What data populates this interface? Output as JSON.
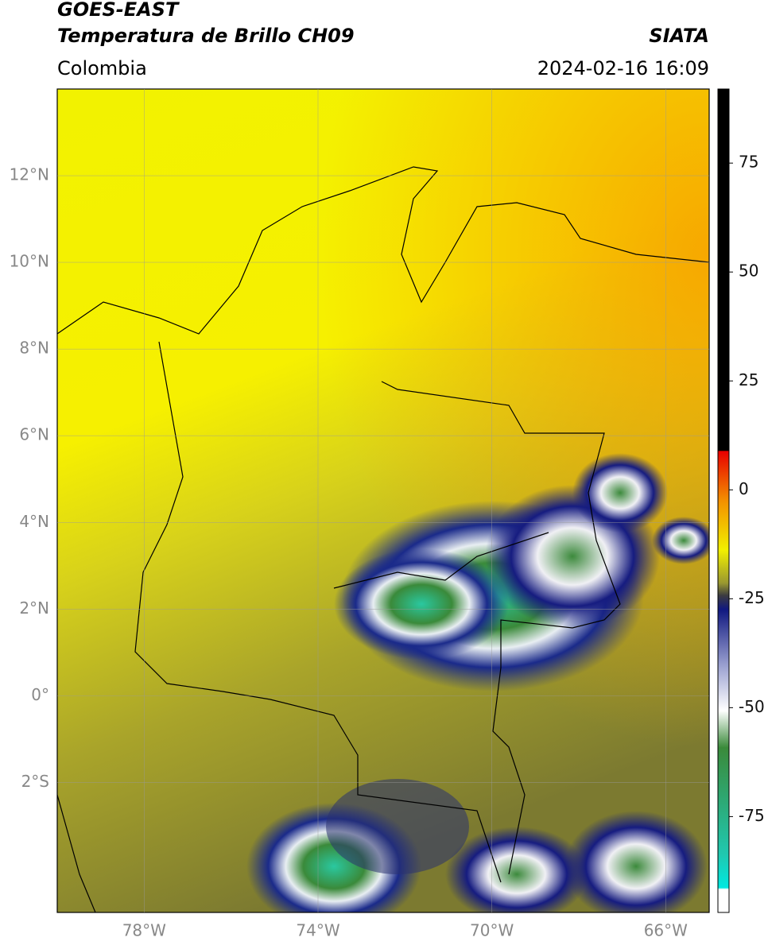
{
  "header": {
    "title_line1": "GOES-EAST",
    "title_line2": "Temperatura de Brillo CH09",
    "source": "SIATA",
    "region": "Colombia",
    "timestamp": "2024-02-16 16:09"
  },
  "map": {
    "xlim": [
      -80,
      -65
    ],
    "ylim": [
      -5,
      14
    ],
    "grid": true,
    "xticks": [
      {
        "value": -78,
        "label": "78°W"
      },
      {
        "value": -74,
        "label": "74°W"
      },
      {
        "value": -70,
        "label": "70°W"
      },
      {
        "value": -66,
        "label": "66°W"
      }
    ],
    "yticks": [
      {
        "value": 12,
        "label": "12°N"
      },
      {
        "value": 10,
        "label": "10°N"
      },
      {
        "value": 8,
        "label": "8°N"
      },
      {
        "value": 6,
        "label": "6°N"
      },
      {
        "value": 4,
        "label": "4°N"
      },
      {
        "value": 2,
        "label": "2°N"
      },
      {
        "value": 0,
        "label": "0°"
      },
      {
        "value": -2,
        "label": "2°S"
      }
    ]
  },
  "colorbar": {
    "lim": [
      -97,
      92
    ],
    "ticks": [
      75,
      50,
      25,
      0,
      -25,
      -50,
      -75
    ]
  }
}
